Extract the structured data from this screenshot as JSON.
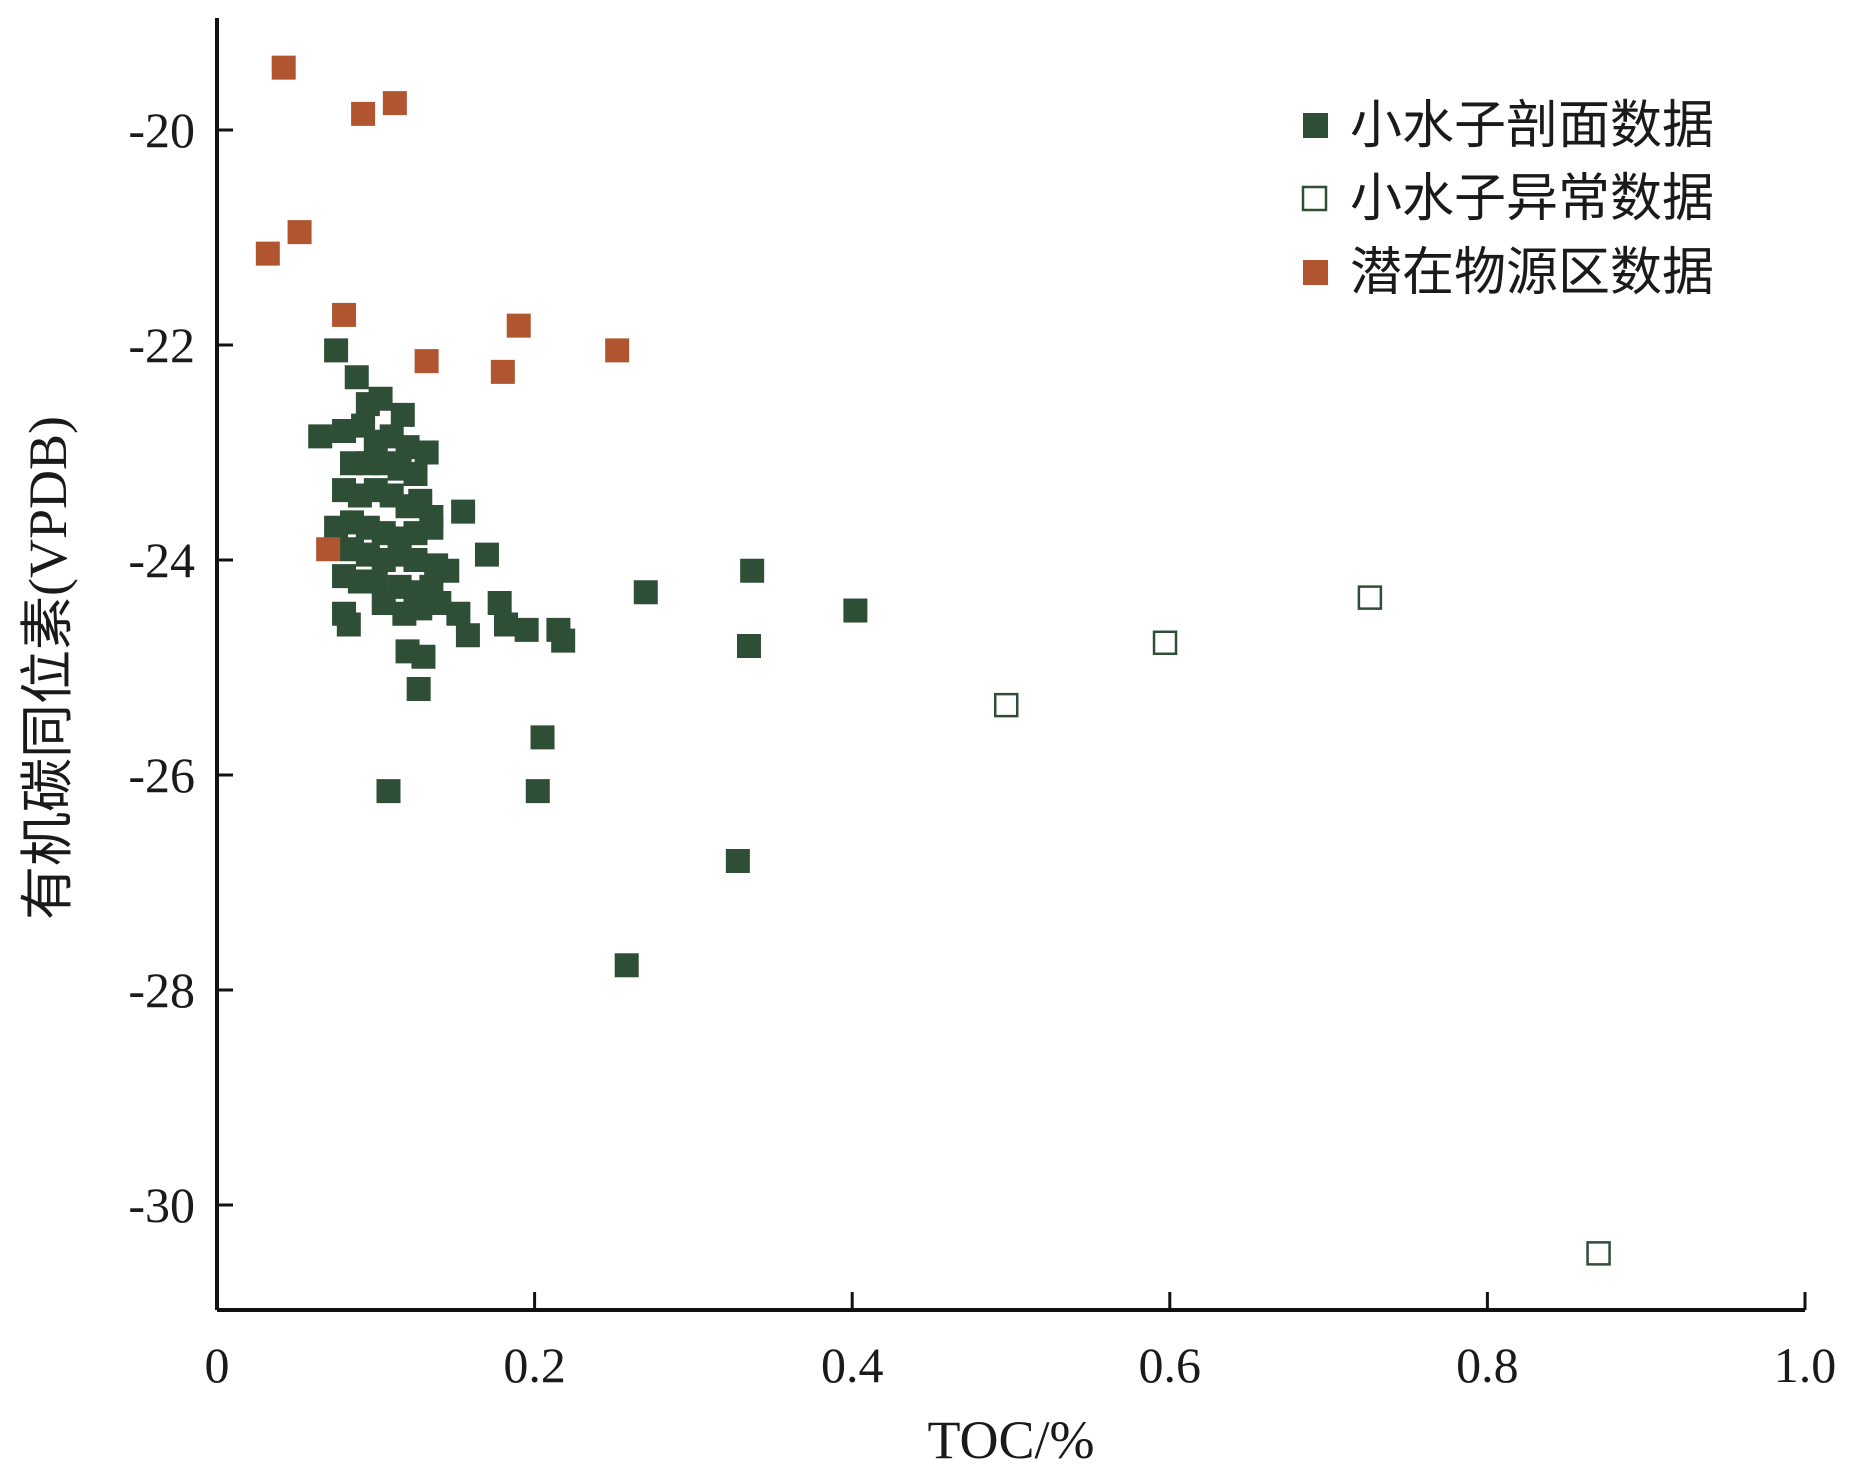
{
  "chart_data": {
    "type": "scatter",
    "title": "",
    "xlabel": "TOC/%",
    "ylabel": "有机碳同位素(VPDB)",
    "xlim": [
      0,
      1.0
    ],
    "ylim": [
      -31,
      -19
    ],
    "x_ticks": [
      0,
      0.2,
      0.4,
      0.6,
      0.8,
      1.0
    ],
    "x_tick_labels": [
      "0",
      "0.2",
      "0.4",
      "0.6",
      "0.8",
      "1.0"
    ],
    "y_ticks": [
      -20,
      -22,
      -24,
      -26,
      -28,
      -30
    ],
    "y_tick_labels": [
      "-20",
      "-22",
      "-24",
      "-26",
      "-28",
      "-30"
    ],
    "grid": false,
    "legend_position": "top-right",
    "series": [
      {
        "name": "小水子剖面数据",
        "color": "#2e4f36",
        "marker": "filled-square",
        "points": [
          [
            0.075,
            -22.05
          ],
          [
            0.088,
            -22.3
          ],
          [
            0.095,
            -22.55
          ],
          [
            0.103,
            -22.5
          ],
          [
            0.117,
            -22.65
          ],
          [
            0.065,
            -22.85
          ],
          [
            0.08,
            -22.8
          ],
          [
            0.092,
            -22.75
          ],
          [
            0.1,
            -22.9
          ],
          [
            0.11,
            -22.85
          ],
          [
            0.12,
            -22.95
          ],
          [
            0.132,
            -23.0
          ],
          [
            0.125,
            -23.2
          ],
          [
            0.115,
            -23.15
          ],
          [
            0.105,
            -23.1
          ],
          [
            0.095,
            -23.1
          ],
          [
            0.085,
            -23.1
          ],
          [
            0.08,
            -23.35
          ],
          [
            0.09,
            -23.4
          ],
          [
            0.1,
            -23.35
          ],
          [
            0.11,
            -23.4
          ],
          [
            0.12,
            -23.5
          ],
          [
            0.128,
            -23.45
          ],
          [
            0.135,
            -23.6
          ],
          [
            0.155,
            -23.55
          ],
          [
            0.075,
            -23.7
          ],
          [
            0.085,
            -23.65
          ],
          [
            0.095,
            -23.7
          ],
          [
            0.105,
            -23.75
          ],
          [
            0.115,
            -23.8
          ],
          [
            0.125,
            -23.75
          ],
          [
            0.135,
            -23.7
          ],
          [
            0.085,
            -23.9
          ],
          [
            0.095,
            -23.95
          ],
          [
            0.105,
            -24.0
          ],
          [
            0.115,
            -23.95
          ],
          [
            0.125,
            -24.0
          ],
          [
            0.138,
            -24.05
          ],
          [
            0.17,
            -23.95
          ],
          [
            0.08,
            -24.15
          ],
          [
            0.09,
            -24.2
          ],
          [
            0.1,
            -24.2
          ],
          [
            0.115,
            -24.25
          ],
          [
            0.125,
            -24.3
          ],
          [
            0.135,
            -24.25
          ],
          [
            0.145,
            -24.1
          ],
          [
            0.08,
            -24.5
          ],
          [
            0.083,
            -24.6
          ],
          [
            0.105,
            -24.4
          ],
          [
            0.118,
            -24.5
          ],
          [
            0.128,
            -24.45
          ],
          [
            0.14,
            -24.4
          ],
          [
            0.152,
            -24.5
          ],
          [
            0.158,
            -24.7
          ],
          [
            0.178,
            -24.4
          ],
          [
            0.182,
            -24.6
          ],
          [
            0.195,
            -24.65
          ],
          [
            0.215,
            -24.65
          ],
          [
            0.218,
            -24.75
          ],
          [
            0.27,
            -24.3
          ],
          [
            0.12,
            -24.85
          ],
          [
            0.13,
            -24.9
          ],
          [
            0.127,
            -25.2
          ],
          [
            0.205,
            -25.65
          ],
          [
            0.108,
            -26.15
          ],
          [
            0.202,
            -26.15
          ],
          [
            0.337,
            -24.1
          ],
          [
            0.335,
            -24.8
          ],
          [
            0.402,
            -24.47
          ],
          [
            0.328,
            -26.8
          ],
          [
            0.258,
            -27.77
          ]
        ]
      },
      {
        "name": "小水子异常数据",
        "color": "#2e4f36",
        "marker": "open-square",
        "points": [
          [
            0.497,
            -25.35
          ],
          [
            0.597,
            -24.77
          ],
          [
            0.726,
            -24.35
          ],
          [
            0.87,
            -30.45
          ]
        ]
      },
      {
        "name": "潜在物源区数据",
        "color": "#b05530",
        "marker": "filled-square",
        "points": [
          [
            0.042,
            -19.42
          ],
          [
            0.092,
            -19.85
          ],
          [
            0.112,
            -19.75
          ],
          [
            0.052,
            -20.95
          ],
          [
            0.032,
            -21.15
          ],
          [
            0.08,
            -21.72
          ],
          [
            0.19,
            -21.82
          ],
          [
            0.252,
            -22.05
          ],
          [
            0.132,
            -22.15
          ],
          [
            0.18,
            -22.25
          ],
          [
            0.07,
            -23.9
          ]
        ]
      }
    ]
  }
}
